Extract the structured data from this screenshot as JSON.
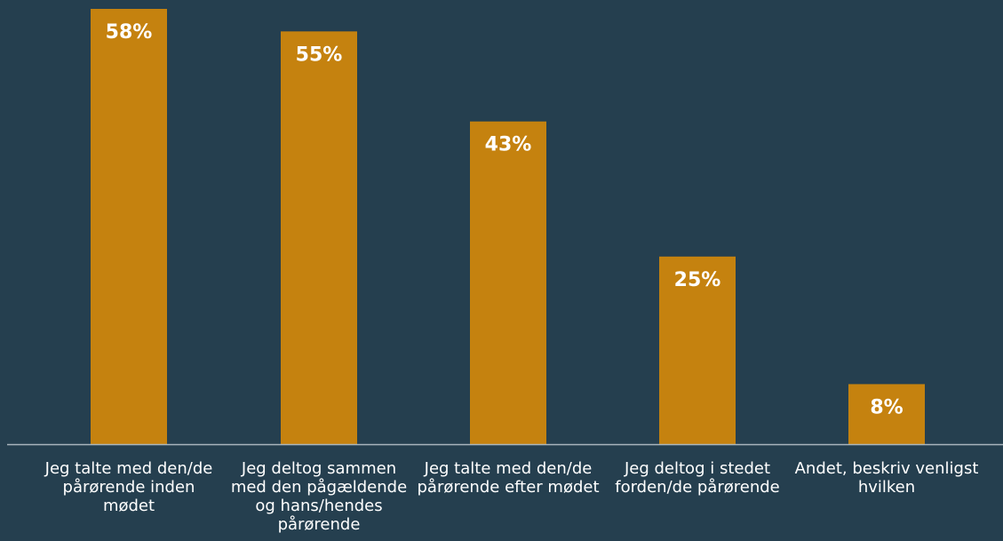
{
  "chart_data": {
    "type": "bar",
    "categories": [
      "Jeg talte med den/de pårørende inden mødet",
      "Jeg deltog sammen med den pågældende og hans/hendes pårørende",
      "Jeg talte med den/de pårørende efter mødet",
      "Jeg deltog i stedet forden/de pårørende",
      "Andet, beskriv venligst hvilken"
    ],
    "values": [
      58,
      55,
      43,
      25,
      8
    ],
    "value_labels": [
      "58%",
      "55%",
      "43%",
      "25%",
      "8%"
    ],
    "title": "",
    "xlabel": "",
    "ylabel": "",
    "ylim": [
      0,
      58
    ],
    "grid": false,
    "legend": "none",
    "bar_color": "#c5820f",
    "background_color": "#253f4f",
    "axis_color": "#a9b5bd",
    "text_color": "#ffffff"
  }
}
